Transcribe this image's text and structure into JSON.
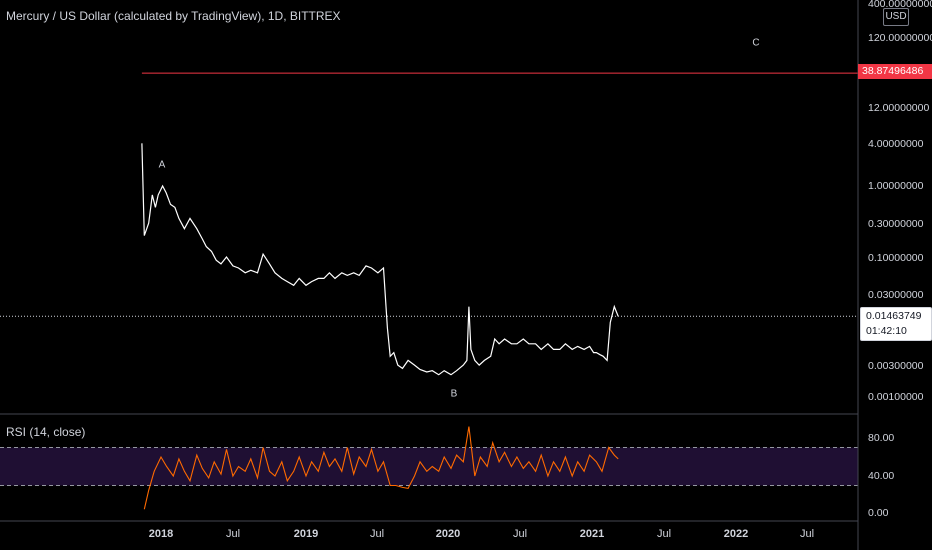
{
  "header": {
    "title": "Mercury / US Dollar (calculated by TradingView), 1D, BITTREX"
  },
  "currency": "USD",
  "price_axis": {
    "labels": [
      "400.00000000",
      "120.00000000",
      "12.00000000",
      "4.00000000",
      "1.00000000",
      "0.30000000",
      "0.10000000",
      "0.03000000",
      "0.00300000",
      "0.00100000"
    ]
  },
  "rsi_axis": {
    "labels": [
      "80.00",
      "40.00",
      "0.00"
    ]
  },
  "time_axis": {
    "labels": [
      "2018",
      "Jul",
      "2019",
      "Jul",
      "2020",
      "Jul",
      "2021",
      "Jul",
      "2022",
      "Jul"
    ]
  },
  "rsi": {
    "title": "RSI (14, close)"
  },
  "marks": {
    "horizontal_line_value": "38.87496486",
    "last_price": "0.01463749",
    "countdown": "01:42:10"
  },
  "annotations": [
    "A",
    "B",
    "C"
  ],
  "colors": {
    "background": "#000000",
    "price_line": "#ffffff",
    "horizontal_line": "#f23645",
    "rsi_line": "#ff6a00",
    "rsi_band": "#1f0f33",
    "grid": "#2a2e39"
  },
  "chart_data": [
    {
      "type": "line",
      "y_scale": "log",
      "series": [
        {
          "x": [
            "2017-11-14",
            "2017-11-20",
            "2017-12-01",
            "2017-12-10",
            "2017-12-18",
            "2017-12-25",
            "2018-01-05",
            "2018-01-14",
            "2018-01-25",
            "2018-02-05",
            "2018-02-15",
            "2018-03-01",
            "2018-03-15",
            "2018-04-01",
            "2018-04-15",
            "2018-04-25",
            "2018-05-08",
            "2018-05-20",
            "2018-06-01",
            "2018-06-15",
            "2018-07-01",
            "2018-07-15",
            "2018-08-01",
            "2018-08-15",
            "2018-09-01",
            "2018-09-15",
            "2018-10-01",
            "2018-10-15",
            "2018-11-01",
            "2018-11-15",
            "2018-12-01",
            "2018-12-15",
            "2019-01-01",
            "2019-01-15",
            "2019-02-01",
            "2019-02-15",
            "2019-03-01",
            "2019-03-15",
            "2019-04-01",
            "2019-04-15",
            "2019-05-01",
            "2019-05-15",
            "2019-06-01",
            "2019-06-15",
            "2019-07-01",
            "2019-07-15",
            "2019-07-25",
            "2019-08-01",
            "2019-08-10",
            "2019-08-20",
            "2019-09-01",
            "2019-09-15",
            "2019-10-01",
            "2019-10-15",
            "2019-11-01",
            "2019-11-15",
            "2019-12-01",
            "2019-12-15",
            "2020-01-01",
            "2020-01-15",
            "2020-02-01",
            "2020-02-10",
            "2020-02-15",
            "2020-02-20",
            "2020-03-01",
            "2020-03-12",
            "2020-03-25",
            "2020-04-10",
            "2020-04-20",
            "2020-05-01",
            "2020-05-15",
            "2020-06-01",
            "2020-06-15",
            "2020-07-01",
            "2020-07-15",
            "2020-08-01",
            "2020-08-15",
            "2020-09-01",
            "2020-09-15",
            "2020-10-01",
            "2020-10-15",
            "2020-11-01",
            "2020-11-15",
            "2020-12-01",
            "2020-12-15",
            "2020-12-25",
            "2021-01-01",
            "2021-01-10",
            "2021-01-18",
            "2021-01-28",
            "2021-02-05",
            "2021-02-15",
            "2021-02-25"
          ],
          "y": [
            4.0,
            0.2,
            0.3,
            0.75,
            0.5,
            0.75,
            1.0,
            0.8,
            0.55,
            0.5,
            0.35,
            0.25,
            0.35,
            0.25,
            0.18,
            0.14,
            0.12,
            0.09,
            0.08,
            0.1,
            0.075,
            0.07,
            0.06,
            0.065,
            0.06,
            0.11,
            0.08,
            0.06,
            0.05,
            0.045,
            0.04,
            0.05,
            0.04,
            0.045,
            0.05,
            0.05,
            0.06,
            0.05,
            0.06,
            0.055,
            0.06,
            0.055,
            0.075,
            0.07,
            0.06,
            0.07,
            0.01,
            0.004,
            0.0045,
            0.003,
            0.0027,
            0.0035,
            0.003,
            0.0026,
            0.0024,
            0.0025,
            0.0022,
            0.0025,
            0.0022,
            0.0025,
            0.003,
            0.0035,
            0.02,
            0.005,
            0.0035,
            0.003,
            0.0035,
            0.004,
            0.007,
            0.006,
            0.007,
            0.006,
            0.006,
            0.007,
            0.006,
            0.006,
            0.005,
            0.006,
            0.005,
            0.005,
            0.006,
            0.005,
            0.0055,
            0.005,
            0.0055,
            0.0045,
            0.0045,
            0.0042,
            0.004,
            0.0035,
            0.012,
            0.02,
            0.0146
          ]
        }
      ],
      "ylim": [
        0.0005,
        400
      ],
      "horizontal_line": 38.87496486,
      "last_value": 0.01463749,
      "annotations": [
        {
          "text": "A",
          "x": "2018-01-01",
          "y": 2.0
        },
        {
          "text": "B",
          "x": "2019-12-05",
          "y": 0.0012
        },
        {
          "text": "C",
          "x": "2021-11-20",
          "y": 220
        }
      ]
    },
    {
      "type": "line",
      "title": "RSI (14, close)",
      "ylim": [
        -5,
        100
      ],
      "band": [
        30,
        70
      ],
      "series": [
        {
          "x": [
            "2017-11-20",
            "2017-12-01",
            "2017-12-15",
            "2018-01-01",
            "2018-01-15",
            "2018-02-01",
            "2018-02-15",
            "2018-03-01",
            "2018-03-15",
            "2018-04-01",
            "2018-04-15",
            "2018-05-01",
            "2018-05-15",
            "2018-06-01",
            "2018-06-15",
            "2018-07-01",
            "2018-07-15",
            "2018-08-01",
            "2018-08-15",
            "2018-09-01",
            "2018-09-15",
            "2018-10-01",
            "2018-10-15",
            "2018-11-01",
            "2018-11-15",
            "2018-12-01",
            "2018-12-15",
            "2019-01-01",
            "2019-01-15",
            "2019-02-01",
            "2019-02-15",
            "2019-03-01",
            "2019-03-15",
            "2019-04-01",
            "2019-04-15",
            "2019-05-01",
            "2019-05-15",
            "2019-06-01",
            "2019-06-15",
            "2019-07-01",
            "2019-07-15",
            "2019-08-01",
            "2019-08-15",
            "2019-09-01",
            "2019-09-15",
            "2019-10-01",
            "2019-10-15",
            "2019-11-01",
            "2019-11-15",
            "2019-12-01",
            "2019-12-15",
            "2020-01-01",
            "2020-01-15",
            "2020-02-01",
            "2020-02-15",
            "2020-03-01",
            "2020-03-15",
            "2020-04-01",
            "2020-04-15",
            "2020-05-01",
            "2020-05-15",
            "2020-06-01",
            "2020-06-15",
            "2020-07-01",
            "2020-07-15",
            "2020-08-01",
            "2020-08-15",
            "2020-09-01",
            "2020-09-15",
            "2020-10-01",
            "2020-10-15",
            "2020-11-01",
            "2020-11-15",
            "2020-12-01",
            "2020-12-15",
            "2021-01-01",
            "2021-01-15",
            "2021-02-01",
            "2021-02-15",
            "2021-02-25"
          ],
          "y": [
            5,
            25,
            45,
            60,
            50,
            40,
            58,
            45,
            35,
            62,
            48,
            38,
            55,
            42,
            68,
            40,
            50,
            45,
            58,
            38,
            70,
            45,
            40,
            55,
            35,
            45,
            60,
            40,
            55,
            45,
            65,
            50,
            58,
            45,
            70,
            42,
            60,
            50,
            68,
            45,
            55,
            30,
            30,
            28,
            27,
            40,
            55,
            45,
            50,
            45,
            60,
            48,
            62,
            55,
            92,
            40,
            60,
            50,
            75,
            55,
            65,
            50,
            60,
            48,
            55,
            45,
            62,
            40,
            55,
            45,
            60,
            40,
            55,
            45,
            62,
            55,
            45,
            70,
            62,
            58
          ]
        }
      ]
    }
  ]
}
